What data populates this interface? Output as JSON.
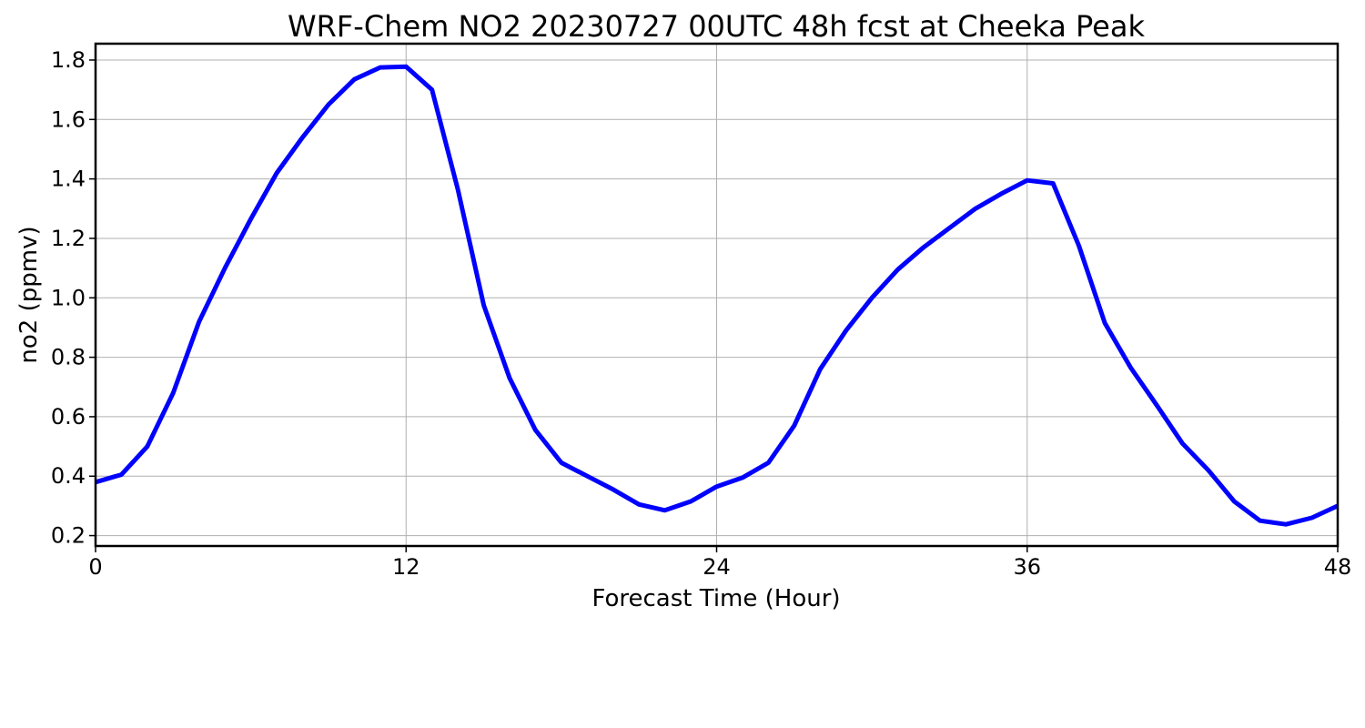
{
  "chart_data": {
    "type": "line",
    "title": "WRF-Chem NO2  20230727 00UTC 48h fcst at Cheeka Peak",
    "xlabel": "Forecast Time (Hour)",
    "ylabel": "no2  (ppmv)",
    "xlim": [
      0,
      48
    ],
    "ylim": [
      0.165,
      1.855
    ],
    "xticks": [
      0,
      12,
      24,
      36,
      48
    ],
    "yticks": [
      0.2,
      0.4,
      0.6,
      0.8,
      1.0,
      1.2,
      1.4,
      1.6,
      1.8
    ],
    "ytick_labels": [
      "0.2",
      "0.4",
      "0.6",
      "0.8",
      "1.0",
      "1.2",
      "1.4",
      "1.6",
      "1.8"
    ],
    "grid": true,
    "series": [
      {
        "color": "#0000ff",
        "x": [
          0,
          1,
          2,
          3,
          4,
          5,
          6,
          7,
          8,
          9,
          10,
          11,
          12,
          13,
          14,
          15,
          16,
          17,
          18,
          19,
          20,
          21,
          22,
          23,
          24,
          25,
          26,
          27,
          28,
          29,
          30,
          31,
          32,
          33,
          34,
          35,
          36,
          37,
          38,
          39,
          40,
          41,
          42,
          43,
          44,
          45,
          46,
          47,
          48
        ],
        "y": [
          0.38,
          0.405,
          0.5,
          0.68,
          0.92,
          1.1,
          1.265,
          1.42,
          1.54,
          1.65,
          1.735,
          1.775,
          1.778,
          1.7,
          1.365,
          0.975,
          0.73,
          0.555,
          0.445,
          0.4,
          0.355,
          0.305,
          0.285,
          0.315,
          0.365,
          0.395,
          0.445,
          0.57,
          0.76,
          0.89,
          1.0,
          1.095,
          1.17,
          1.235,
          1.3,
          1.35,
          1.395,
          1.385,
          1.175,
          0.915,
          0.765,
          0.64,
          0.51,
          0.42,
          0.315,
          0.25,
          0.238,
          0.26,
          0.3
        ]
      }
    ]
  }
}
